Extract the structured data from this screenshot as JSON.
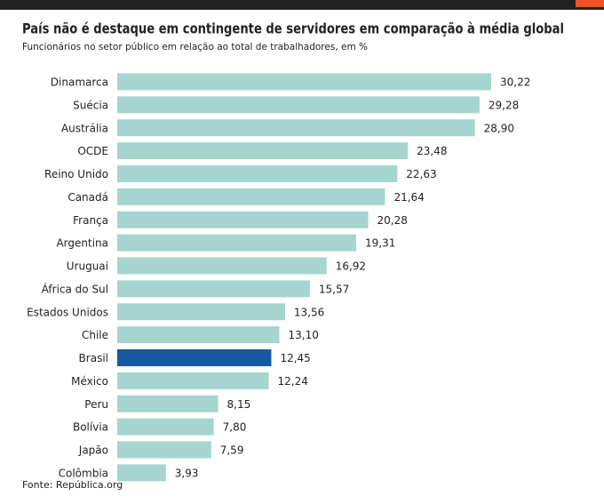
{
  "chart_data": {
    "type": "bar",
    "orientation": "horizontal",
    "title": "País não é destaque em contingente de servidores em comparação à média global",
    "subtitle": "Funcionários no setor público em relação ao total de trabalhadores, em %",
    "source": "Fonte: República.org",
    "categories": [
      "Dinamarca",
      "Suécia",
      "Austrália",
      "OCDE",
      "Reino Unido",
      "Canadá",
      "França",
      "Argentina",
      "Uruguai",
      "África do Sul",
      "Estados Unidos",
      "Chile",
      "Brasil",
      "México",
      "Peru",
      "Bolívia",
      "Japão",
      "Colômbia"
    ],
    "values": [
      30.22,
      29.28,
      28.9,
      23.48,
      22.63,
      21.64,
      20.28,
      19.31,
      16.92,
      15.57,
      13.56,
      13.1,
      12.45,
      12.24,
      8.15,
      7.8,
      7.59,
      3.93
    ],
    "value_labels": [
      "30,22",
      "29,28",
      "28,90",
      "23,48",
      "22,63",
      "21,64",
      "20,28",
      "19,31",
      "16,92",
      "15,57",
      "13,56",
      "13,10",
      "12,45",
      "12,24",
      "8,15",
      "7,80",
      "7,59",
      "3,93"
    ],
    "colors": [
      "#a6d5cf",
      "#a6d5cf",
      "#a6d5cf",
      "#a6d5cf",
      "#a6d5cf",
      "#a6d5cf",
      "#a6d5cf",
      "#a6d5cf",
      "#a6d5cf",
      "#a6d5cf",
      "#a6d5cf",
      "#a6d5cf",
      "#1659a0",
      "#a6d5cf",
      "#a6d5cf",
      "#a6d5cf",
      "#a6d5cf",
      "#a6d5cf"
    ]
  }
}
